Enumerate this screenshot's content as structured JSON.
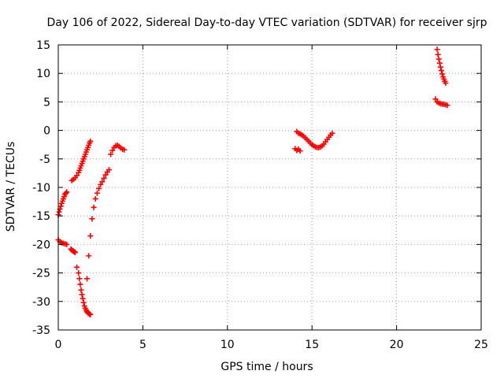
{
  "chart_data": {
    "type": "scatter",
    "title": "Day 106 of 2022, Sidereal Day-to-day VTEC variation (SDTVAR) for receiver sjrp",
    "xlabel": "GPS time / hours",
    "ylabel": "SDTVAR / TECUs",
    "xlim": [
      0,
      25
    ],
    "ylim": [
      -35,
      15
    ],
    "xticks": [
      0,
      5,
      10,
      15,
      20,
      25
    ],
    "yticks": [
      15,
      10,
      5,
      0,
      -5,
      -10,
      -15,
      -20,
      -25,
      -30,
      -35
    ],
    "grid": true,
    "marker": "+",
    "color": "#ff0000",
    "series": [
      {
        "x": [
          0.0,
          0.05,
          0.1,
          0.15,
          0.2,
          0.25,
          0.3,
          0.35,
          0.4,
          0.45,
          0.5
        ],
        "y": [
          -14.8,
          -14.3,
          -13.8,
          -13.3,
          -12.8,
          -12.4,
          -12.0,
          -11.6,
          -11.2,
          -11.0,
          -10.8
        ]
      },
      {
        "x": [
          0.0,
          0.1,
          0.2,
          0.3,
          0.4,
          0.5
        ],
        "y": [
          -19.2,
          -19.5,
          -19.7,
          -19.8,
          -19.9,
          -20.0
        ]
      },
      {
        "x": [
          0.75,
          0.8,
          0.85,
          0.9,
          0.95,
          1.0
        ],
        "y": [
          -20.8,
          -21.0,
          -21.1,
          -21.2,
          -21.3,
          -21.4
        ]
      },
      {
        "x": [
          0.8,
          0.9,
          1.0,
          1.1,
          1.2,
          1.25,
          1.3,
          1.35,
          1.4,
          1.45,
          1.5,
          1.55,
          1.6,
          1.65,
          1.7,
          1.75,
          1.8,
          1.85,
          1.9
        ],
        "y": [
          -8.8,
          -8.6,
          -8.3,
          -7.9,
          -7.4,
          -7.0,
          -6.6,
          -6.2,
          -5.8,
          -5.4,
          -5.0,
          -4.6,
          -4.2,
          -3.8,
          -3.4,
          -3.0,
          -2.6,
          -2.2,
          -1.9
        ]
      },
      {
        "x": [
          1.1,
          1.2,
          1.25,
          1.3,
          1.35,
          1.4,
          1.45,
          1.5,
          1.55,
          1.6,
          1.65,
          1.7,
          1.75,
          1.8,
          1.85,
          1.9
        ],
        "y": [
          -24.0,
          -25.0,
          -26.0,
          -27.0,
          -28.0,
          -28.8,
          -29.5,
          -30.2,
          -30.8,
          -31.2,
          -31.5,
          -31.8,
          -32.0,
          -32.1,
          -32.2,
          -32.3
        ]
      },
      {
        "x": [
          1.7,
          1.8,
          1.9,
          2.0,
          2.1,
          2.2,
          2.3,
          2.4,
          2.5,
          2.6,
          2.7,
          2.8,
          2.9,
          3.0
        ],
        "y": [
          -26.0,
          -22.0,
          -18.5,
          -15.5,
          -13.5,
          -12.0,
          -11.0,
          -10.2,
          -9.5,
          -9.0,
          -8.4,
          -7.8,
          -7.3,
          -6.9
        ]
      },
      {
        "x": [
          3.1,
          3.2,
          3.3,
          3.4,
          3.5,
          3.6,
          3.7,
          3.8,
          3.9
        ],
        "y": [
          -4.2,
          -3.5,
          -3.0,
          -2.7,
          -2.6,
          -2.8,
          -3.1,
          -3.3,
          -3.4
        ]
      },
      {
        "x": [
          14.0,
          14.1,
          14.2,
          14.3
        ],
        "y": [
          -3.2,
          -3.5,
          -3.3,
          -3.6
        ]
      },
      {
        "x": [
          14.1,
          14.2,
          14.3,
          14.4,
          14.5,
          14.6,
          14.7,
          14.8,
          14.9,
          15.0,
          15.1,
          15.2,
          15.3,
          15.4,
          15.5,
          15.6,
          15.7,
          15.8,
          15.9,
          16.0,
          16.1,
          16.2
        ],
        "y": [
          -0.2,
          -0.5,
          -0.6,
          -0.8,
          -1.0,
          -1.3,
          -1.6,
          -1.9,
          -2.2,
          -2.5,
          -2.7,
          -2.9,
          -3.0,
          -3.0,
          -2.9,
          -2.7,
          -2.4,
          -2.0,
          -1.6,
          -1.2,
          -0.8,
          -0.5
        ]
      },
      {
        "x": [
          22.4,
          22.45,
          22.5,
          22.55,
          22.6,
          22.65,
          22.7,
          22.75,
          22.8,
          22.85,
          22.9
        ],
        "y": [
          14.2,
          13.3,
          12.5,
          11.8,
          11.1,
          10.5,
          9.9,
          9.4,
          9.0,
          8.6,
          8.3
        ]
      },
      {
        "x": [
          22.3,
          22.4,
          22.5,
          22.6,
          22.7,
          22.8,
          22.9,
          23.0
        ],
        "y": [
          5.5,
          5.0,
          4.8,
          4.7,
          4.6,
          4.6,
          4.5,
          4.4
        ]
      }
    ]
  }
}
